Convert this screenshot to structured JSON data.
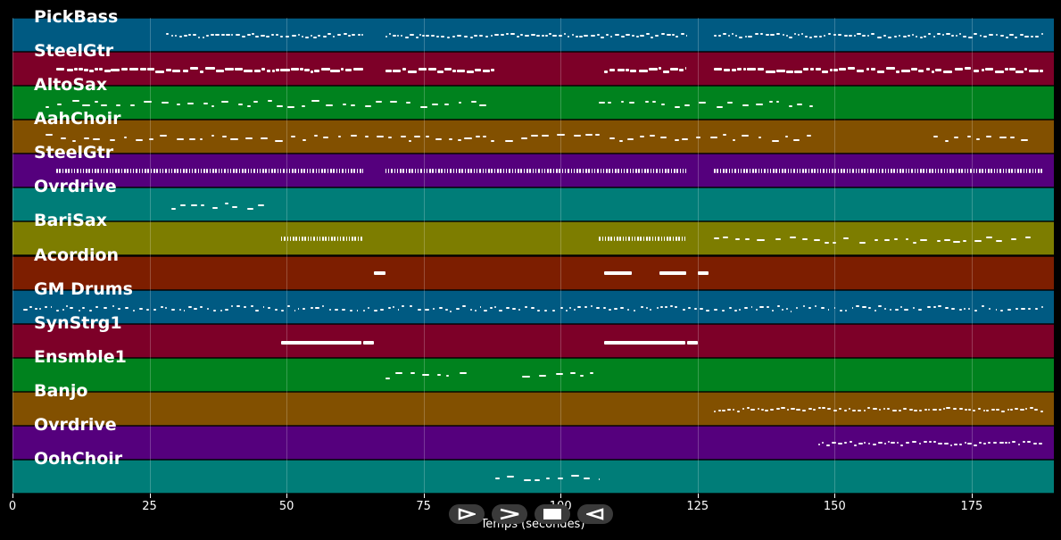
{
  "chart_data": {
    "type": "piano_roll",
    "xlabel": "Temps (secondes)",
    "xlim": [
      0,
      190
    ],
    "xticks": [
      0,
      25,
      50,
      75,
      100,
      125,
      150,
      175
    ],
    "tracks": [
      {
        "name": "PickBass",
        "color": "#005a82",
        "segments": [
          [
            28,
            64,
            "dense"
          ],
          [
            68,
            123,
            "dense"
          ],
          [
            128,
            188,
            "dense"
          ]
        ]
      },
      {
        "name": "SteelGtr",
        "color": "#7d0028",
        "segments": [
          [
            8,
            64,
            "thick"
          ],
          [
            68,
            88,
            "thick"
          ],
          [
            108,
            123,
            "thick"
          ],
          [
            128,
            188,
            "thick"
          ]
        ]
      },
      {
        "name": "AltoSax",
        "color": "#00821e",
        "segments": [
          [
            6,
            87,
            "sparse"
          ],
          [
            107,
            146,
            "sparse"
          ]
        ]
      },
      {
        "name": "AahChoir",
        "color": "#825000",
        "segments": [
          [
            6,
            146,
            "sparse"
          ],
          [
            168,
            186,
            "sparse"
          ]
        ]
      },
      {
        "name": "SteelGtr",
        "color": "#55007d",
        "segments": [
          [
            8,
            64,
            "comb"
          ],
          [
            68,
            123,
            "comb"
          ],
          [
            128,
            188,
            "comb"
          ]
        ]
      },
      {
        "name": "Ovrdrive",
        "color": "#007d78",
        "segments": [
          [
            29,
            47,
            "sparse"
          ]
        ]
      },
      {
        "name": "BariSax",
        "color": "#7d7d00",
        "segments": [
          [
            49,
            64,
            "comb"
          ],
          [
            107,
            123,
            "comb"
          ],
          [
            128,
            186,
            "sparse"
          ]
        ]
      },
      {
        "name": "Acordion",
        "color": "#7d1e00",
        "segments": [
          [
            66,
            68,
            "block"
          ],
          [
            108,
            113,
            "block"
          ],
          [
            118,
            123,
            "block"
          ],
          [
            125,
            127,
            "block"
          ]
        ]
      },
      {
        "name": "GM Drums",
        "color": "#005a82",
        "segments": [
          [
            2,
            188,
            "drums"
          ]
        ]
      },
      {
        "name": "SynStrg1",
        "color": "#7d0028",
        "segments": [
          [
            49,
            66,
            "long"
          ],
          [
            108,
            125,
            "long"
          ]
        ]
      },
      {
        "name": "Ensmble1",
        "color": "#00821e",
        "segments": [
          [
            68,
            83,
            "sparse"
          ],
          [
            93,
            107,
            "sparse"
          ]
        ]
      },
      {
        "name": "Banjo",
        "color": "#825000",
        "segments": [
          [
            128,
            188,
            "dense"
          ]
        ]
      },
      {
        "name": "Ovrdrive",
        "color": "#55007d",
        "segments": [
          [
            147,
            188,
            "dense"
          ]
        ]
      },
      {
        "name": "OohChoir",
        "color": "#007d78",
        "segments": [
          [
            88,
            107,
            "sparse"
          ]
        ]
      }
    ]
  },
  "controls": [
    {
      "name": "play-icon"
    },
    {
      "name": "fast-forward-icon"
    },
    {
      "name": "stop-icon"
    },
    {
      "name": "rewind-icon"
    }
  ]
}
